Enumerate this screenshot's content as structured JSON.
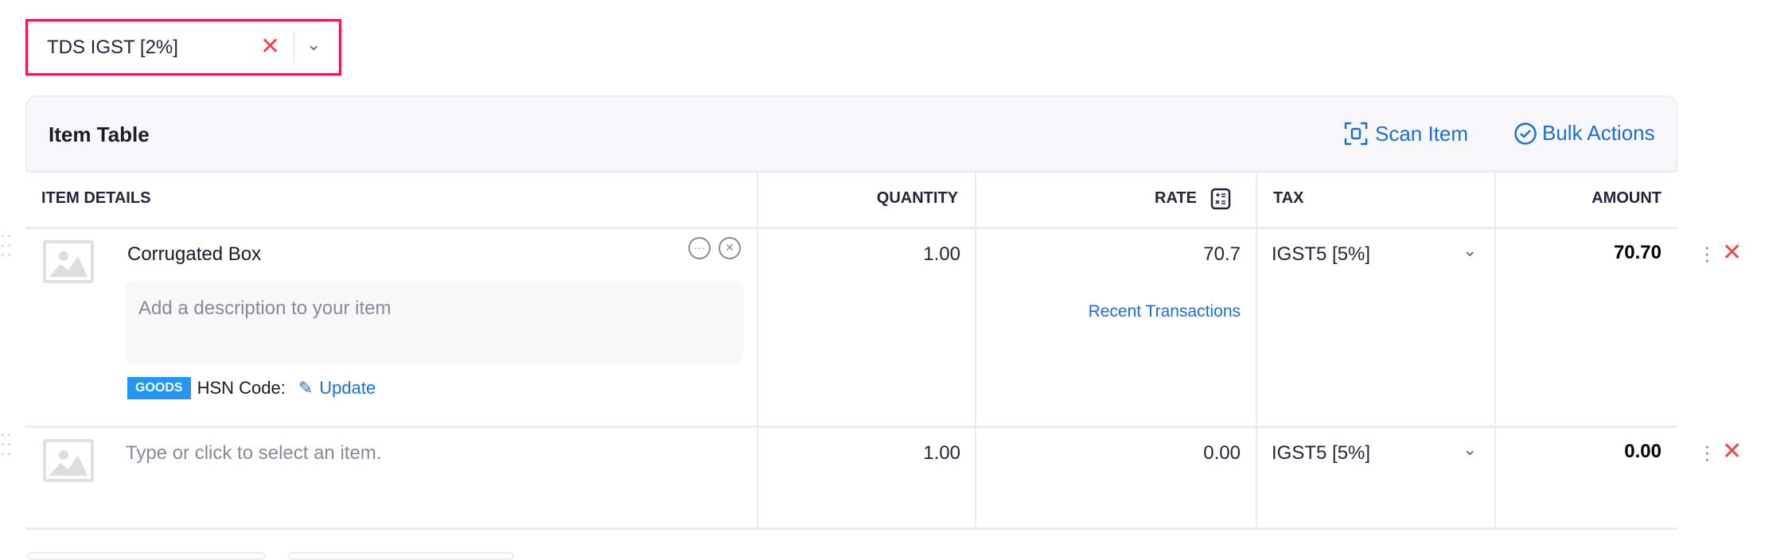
{
  "tds_select": {
    "value": "TDS IGST [2%]",
    "clear_icon": "close-icon",
    "dropdown_icon": "chevron-down-icon",
    "highlight_color": "#f0134d"
  },
  "item_table": {
    "title": "Item Table",
    "scan_item": "Scan Item",
    "bulk_actions": "Bulk Actions",
    "columns": {
      "item_details": "ITEM DETAILS",
      "quantity": "QUANTITY",
      "rate": "RATE",
      "tax": "TAX",
      "amount": "AMOUNT"
    },
    "rows": [
      {
        "item": "Corrugated Box",
        "description_placeholder": "Add a description to your item",
        "badge": "GOODS",
        "hsn_label": "HSN Code:",
        "hsn_action": "Update",
        "quantity": "1.00",
        "rate": "70.7",
        "rate_link": "Recent Transactions",
        "tax": "IGST5 [5%]",
        "amount": "70.70"
      },
      {
        "item_placeholder": "Type or click to select an item.",
        "quantity": "1.00",
        "rate": "0.00",
        "tax": "IGST5 [5%]",
        "amount": "0.00"
      }
    ]
  },
  "colors": {
    "link": "#1b6fdc",
    "danger": "#f04848",
    "badge": "#2196f3"
  }
}
